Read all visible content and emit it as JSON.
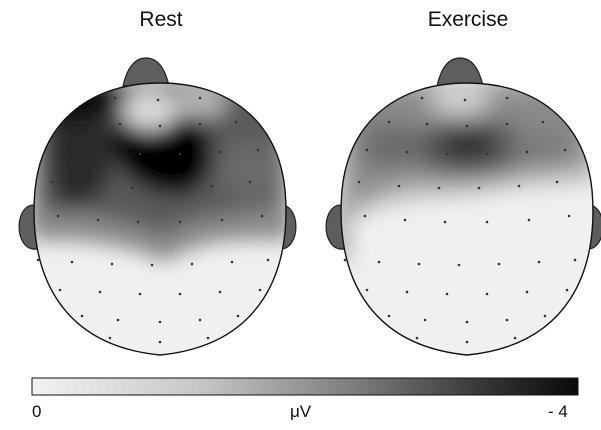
{
  "panels": [
    {
      "id": "rest",
      "title": "Rest"
    },
    {
      "id": "exercise",
      "title": "Exercise"
    }
  ],
  "colorbar": {
    "min_label": "0",
    "unit_label": "μV",
    "max_label": "- 4",
    "color_low": "#f2f2f2",
    "color_high": "#0a0a0a"
  },
  "colors": {
    "ear_nose": "#5e5e5e",
    "outline": "#111111",
    "electrode_dot": "#333333"
  }
}
